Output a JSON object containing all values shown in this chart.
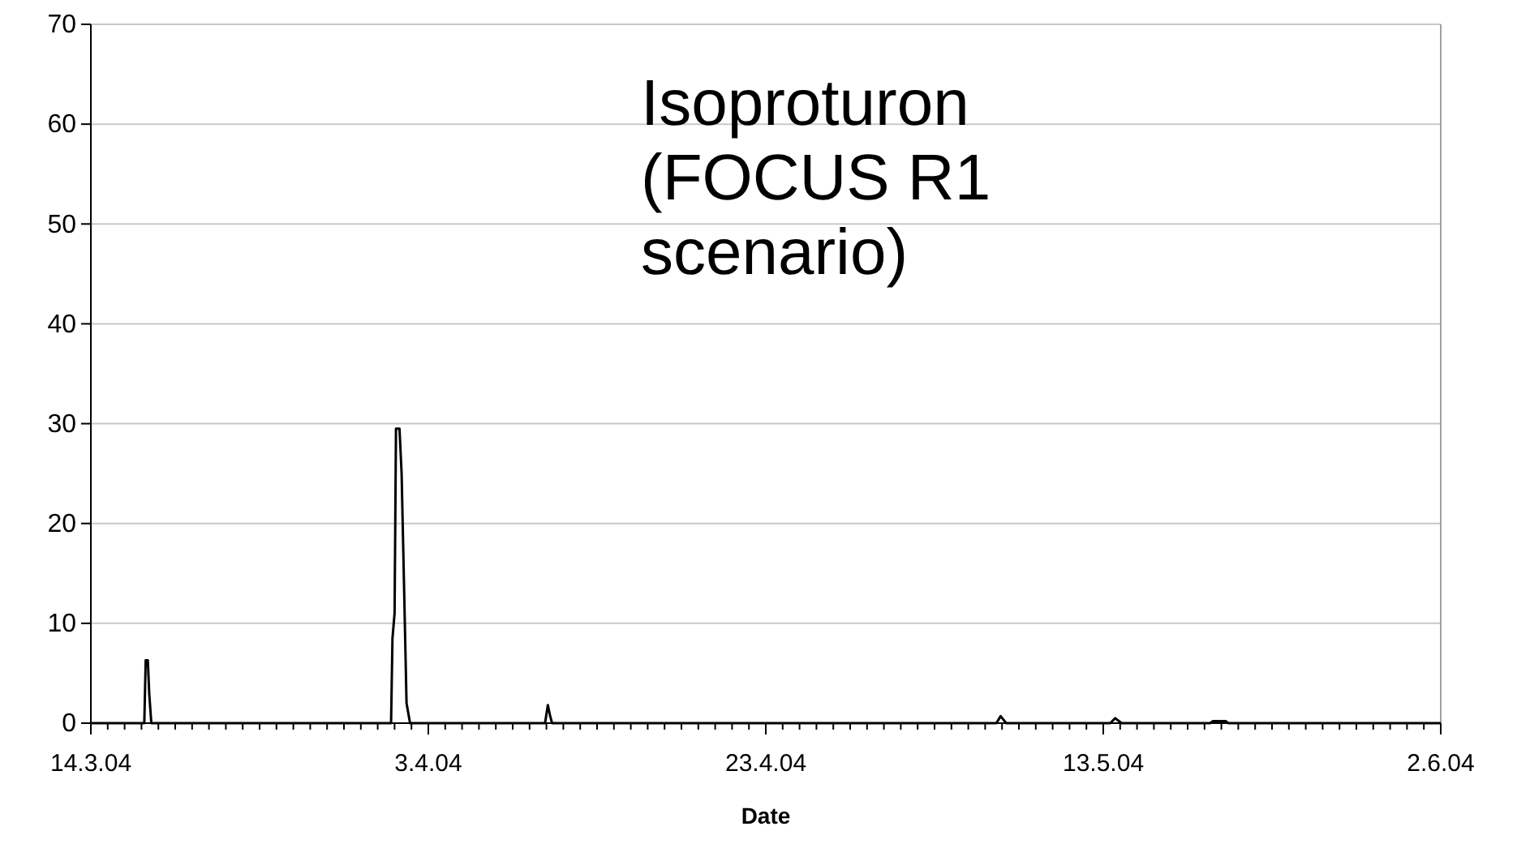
{
  "chart_data": {
    "type": "line",
    "xlabel": "Date",
    "annotations": [
      "Isoproturon (FOCUS R1 scenario)"
    ],
    "x": [
      "2004-03-14",
      "2004-03-17T04:00",
      "2004-03-17T06:00",
      "2004-03-17T09:00",
      "2004-03-17T11:00",
      "2004-03-17T14:00",
      "2004-03-31T19:00",
      "2004-03-31T21:00",
      "2004-04-01T00:00",
      "2004-04-01T02:00",
      "2004-04-01T07:00",
      "2004-04-01T10:00",
      "2004-04-01T14:00",
      "2004-04-01T17:00",
      "2004-04-01T22:00",
      "2004-04-09T22:00",
      "2004-04-10T02:00",
      "2004-04-10T05:00",
      "2004-04-10T08:00",
      "2004-05-06T16:00",
      "2004-05-06T22:00",
      "2004-05-07T06:00",
      "2004-05-13T10:00",
      "2004-05-13T17:00",
      "2004-05-14T02:00",
      "2004-05-19T08:00",
      "2004-05-19T12:00",
      "2004-05-20T06:00",
      "2004-05-20T10:00",
      "2004-06-02"
    ],
    "series": [
      {
        "color": "#000000",
        "values": [
          0,
          0,
          6.3,
          6.3,
          3,
          0,
          0,
          8.5,
          11,
          29.5,
          29.5,
          25,
          12,
          2,
          0,
          0,
          1.8,
          0.8,
          0,
          0,
          0.7,
          0,
          0,
          0.5,
          0,
          0,
          0.2,
          0.2,
          0,
          0
        ]
      }
    ],
    "xlim": [
      "2004-03-14",
      "2004-06-02"
    ],
    "xticks": [
      {
        "value": "2004-03-14",
        "label": "14.3.04"
      },
      {
        "value": "2004-04-03",
        "label": "3.4.04"
      },
      {
        "value": "2004-04-23",
        "label": "23.4.04"
      },
      {
        "value": "2004-05-13",
        "label": "13.5.04"
      },
      {
        "value": "2004-06-02",
        "label": "2.6.04"
      }
    ],
    "ylim": [
      0,
      70
    ],
    "yticks": [
      0,
      10,
      20,
      30,
      40,
      50,
      60,
      70
    ],
    "grid": "y",
    "marker": "none",
    "line_style": "solid"
  }
}
